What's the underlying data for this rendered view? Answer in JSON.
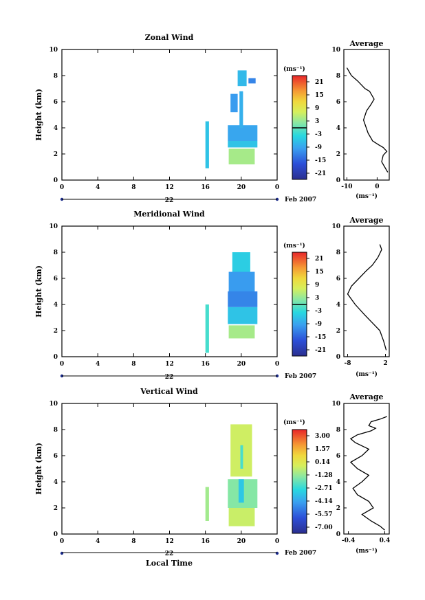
{
  "panels": [
    {
      "key": "zonal",
      "title": "Zonal Wind",
      "ylabel": "Height (km)",
      "day_label": "22",
      "date_label": "Feb 2007",
      "xlabel": "",
      "avg_title": "Average",
      "avg_xlabel": "(ms⁻¹)",
      "cb_unit": "(ms⁻¹)",
      "cb_labels": [
        "21",
        "15",
        "9",
        "3",
        "-3",
        "-9",
        "-15",
        "-21"
      ]
    },
    {
      "key": "meridional",
      "title": "Meridional Wind",
      "ylabel": "Height (km)",
      "day_label": "22",
      "date_label": "Feb 2007",
      "xlabel": "",
      "avg_title": "Average",
      "avg_xlabel": "(ms⁻¹)",
      "cb_unit": "(ms⁻¹)",
      "cb_labels": [
        "21",
        "15",
        "9",
        "3",
        "-3",
        "-9",
        "-15",
        "-21"
      ]
    },
    {
      "key": "vertical",
      "title": "Vertical Wind",
      "ylabel": "Height (km)",
      "day_label": "22",
      "date_label": "Feb 2007",
      "xlabel": "Local Time",
      "avg_title": "Average",
      "avg_xlabel": "(ms⁻¹)",
      "cb_unit": "(ms⁻¹)",
      "cb_labels": [
        "3.00",
        "1.57",
        "0.14",
        "-1.28",
        "-2.71",
        "-4.14",
        "-5.57",
        "-7.00"
      ]
    }
  ],
  "chart_data": [
    {
      "type": "heatmap",
      "title": "Zonal Wind",
      "xlabel": "",
      "ylabel": "Height (km)",
      "xlim": [
        0,
        24
      ],
      "ylim": [
        0,
        10
      ],
      "xticks": [
        "0",
        "4",
        "8",
        "12",
        "16",
        "20",
        "0"
      ],
      "yticks": [
        "0",
        "2",
        "4",
        "6",
        "8",
        "10"
      ],
      "color_range": [
        -24,
        24
      ],
      "colorbar_ticks": [
        21,
        15,
        9,
        3,
        -3,
        -9,
        -15,
        -21
      ],
      "colors": {
        "low": "#2b2f8f",
        "zero_line": "#000000",
        "high": "#e8262a"
      },
      "cells": [
        {
          "t": [
            16.0,
            16.4
          ],
          "h": [
            0.9,
            4.5
          ],
          "v": -6
        },
        {
          "t": [
            18.5,
            21.8
          ],
          "h": [
            3.0,
            4.2
          ],
          "v": -9
        },
        {
          "t": [
            18.5,
            21.8
          ],
          "h": [
            2.5,
            3.0
          ],
          "v": -6
        },
        {
          "t": [
            18.6,
            21.5
          ],
          "h": [
            1.2,
            2.4
          ],
          "v": 4
        },
        {
          "t": [
            18.8,
            19.6
          ],
          "h": [
            5.2,
            6.6
          ],
          "v": -10
        },
        {
          "t": [
            19.8,
            20.2
          ],
          "h": [
            4.0,
            6.8
          ],
          "v": -8
        },
        {
          "t": [
            19.6,
            20.6
          ],
          "h": [
            7.2,
            8.4
          ],
          "v": -7
        },
        {
          "t": [
            20.8,
            21.6
          ],
          "h": [
            7.4,
            7.8
          ],
          "v": -12
        }
      ]
    },
    {
      "type": "line",
      "title": "Average",
      "xlabel": "(ms⁻¹)",
      "ylabel": "",
      "xlim": [
        -11,
        4
      ],
      "ylim": [
        0,
        10
      ],
      "xticks": [
        "-10",
        "0"
      ],
      "yticks": [
        "0",
        "2",
        "4",
        "6",
        "8",
        "10"
      ],
      "x": [
        3.5,
        2.5,
        1.5,
        2.0,
        3.2,
        2.0,
        0.5,
        -1.5,
        -3.0,
        -4.5,
        -3.5,
        -2.0,
        -1.0,
        -2.5,
        -4.0,
        -6.5,
        -8.5,
        -10.0
      ],
      "y": [
        0.6,
        1.0,
        1.4,
        1.9,
        2.2,
        2.5,
        2.7,
        3.0,
        3.6,
        4.6,
        5.3,
        5.8,
        6.2,
        6.8,
        7.0,
        7.6,
        8.0,
        8.6
      ]
    },
    {
      "type": "heatmap",
      "title": "Meridional Wind",
      "xlabel": "",
      "ylabel": "Height (km)",
      "xlim": [
        0,
        24
      ],
      "ylim": [
        0,
        10
      ],
      "xticks": [
        "0",
        "4",
        "8",
        "12",
        "16",
        "20",
        "0"
      ],
      "yticks": [
        "0",
        "2",
        "4",
        "6",
        "8",
        "10"
      ],
      "color_range": [
        -24,
        24
      ],
      "colorbar_ticks": [
        21,
        15,
        9,
        3,
        -3,
        -9,
        -15,
        -21
      ],
      "colors": {
        "low": "#2b2f8f",
        "zero_line": "#000000",
        "high": "#e8262a"
      },
      "cells": [
        {
          "t": [
            16.0,
            16.4
          ],
          "h": [
            0.3,
            4.0
          ],
          "v": -2
        },
        {
          "t": [
            18.5,
            21.8
          ],
          "h": [
            2.5,
            3.8
          ],
          "v": -6
        },
        {
          "t": [
            18.5,
            21.8
          ],
          "h": [
            3.8,
            5.0
          ],
          "v": -12
        },
        {
          "t": [
            18.6,
            21.5
          ],
          "h": [
            5.0,
            6.5
          ],
          "v": -10
        },
        {
          "t": [
            19.0,
            21.0
          ],
          "h": [
            6.5,
            8.0
          ],
          "v": -5
        },
        {
          "t": [
            18.6,
            21.5
          ],
          "h": [
            1.4,
            2.4
          ],
          "v": 4
        }
      ]
    },
    {
      "type": "line",
      "title": "Average",
      "xlabel": "(ms⁻¹)",
      "ylabel": "",
      "xlim": [
        -9,
        3
      ],
      "ylim": [
        0,
        10
      ],
      "xticks": [
        "-8",
        "2"
      ],
      "yticks": [
        "0",
        "2",
        "4",
        "6",
        "8",
        "10"
      ],
      "x": [
        2.2,
        1.5,
        0.5,
        -1.5,
        -3.5,
        -6.0,
        -8.0,
        -7.0,
        -5.0,
        -3.0,
        -1.5,
        0.0,
        1.0,
        0.5
      ],
      "y": [
        0.5,
        1.2,
        2.0,
        2.6,
        3.2,
        4.0,
        4.8,
        5.4,
        6.0,
        6.6,
        7.0,
        7.6,
        8.2,
        8.6
      ]
    },
    {
      "type": "heatmap",
      "title": "Vertical Wind",
      "xlabel": "Local Time",
      "ylabel": "Height (km)",
      "xlim": [
        0,
        24
      ],
      "ylim": [
        0,
        10
      ],
      "xticks": [
        "0",
        "4",
        "8",
        "12",
        "16",
        "20",
        "0"
      ],
      "yticks": [
        "0",
        "2",
        "4",
        "6",
        "8",
        "10"
      ],
      "color_range": [
        -8.43,
        4.43
      ],
      "colorbar_ticks": [
        3.0,
        1.57,
        0.14,
        -1.28,
        -2.71,
        -4.14,
        -5.57,
        -7.0
      ],
      "colors": {
        "low": "#2b2f8f",
        "high": "#e8262a"
      },
      "cells": [
        {
          "t": [
            16.0,
            16.4
          ],
          "h": [
            1.0,
            3.6
          ],
          "v": -1.0
        },
        {
          "t": [
            18.5,
            21.8
          ],
          "h": [
            2.0,
            4.2
          ],
          "v": -1.5
        },
        {
          "t": [
            18.6,
            21.5
          ],
          "h": [
            0.6,
            2.0
          ],
          "v": -0.3
        },
        {
          "t": [
            18.8,
            21.2
          ],
          "h": [
            4.4,
            8.4
          ],
          "v": -0.2
        },
        {
          "t": [
            19.7,
            20.3
          ],
          "h": [
            2.4,
            4.2
          ],
          "v": -3.5
        },
        {
          "t": [
            19.9,
            20.2
          ],
          "h": [
            5.0,
            6.8
          ],
          "v": -2.5
        }
      ]
    },
    {
      "type": "line",
      "title": "Average",
      "xlabel": "(ms⁻¹)",
      "ylabel": "",
      "xlim": [
        -0.5,
        0.5
      ],
      "ylim": [
        0,
        10
      ],
      "xticks": [
        "-0.4",
        "0.4"
      ],
      "yticks": [
        "0",
        "2",
        "4",
        "6",
        "8",
        "10"
      ],
      "x": [
        0.4,
        0.3,
        0.1,
        -0.1,
        0.15,
        0.05,
        -0.2,
        -0.3,
        -0.1,
        0.05,
        -0.2,
        -0.35,
        -0.1,
        0.05,
        -0.25,
        -0.35,
        -0.2,
        0.1,
        0.2,
        0.05,
        0.1,
        0.3,
        0.45
      ],
      "y": [
        0.3,
        0.6,
        1.0,
        1.5,
        2.0,
        2.5,
        3.0,
        3.5,
        4.0,
        4.5,
        5.0,
        5.5,
        6.0,
        6.5,
        7.0,
        7.3,
        7.6,
        7.9,
        8.1,
        8.3,
        8.6,
        8.8,
        9.0
      ]
    }
  ]
}
